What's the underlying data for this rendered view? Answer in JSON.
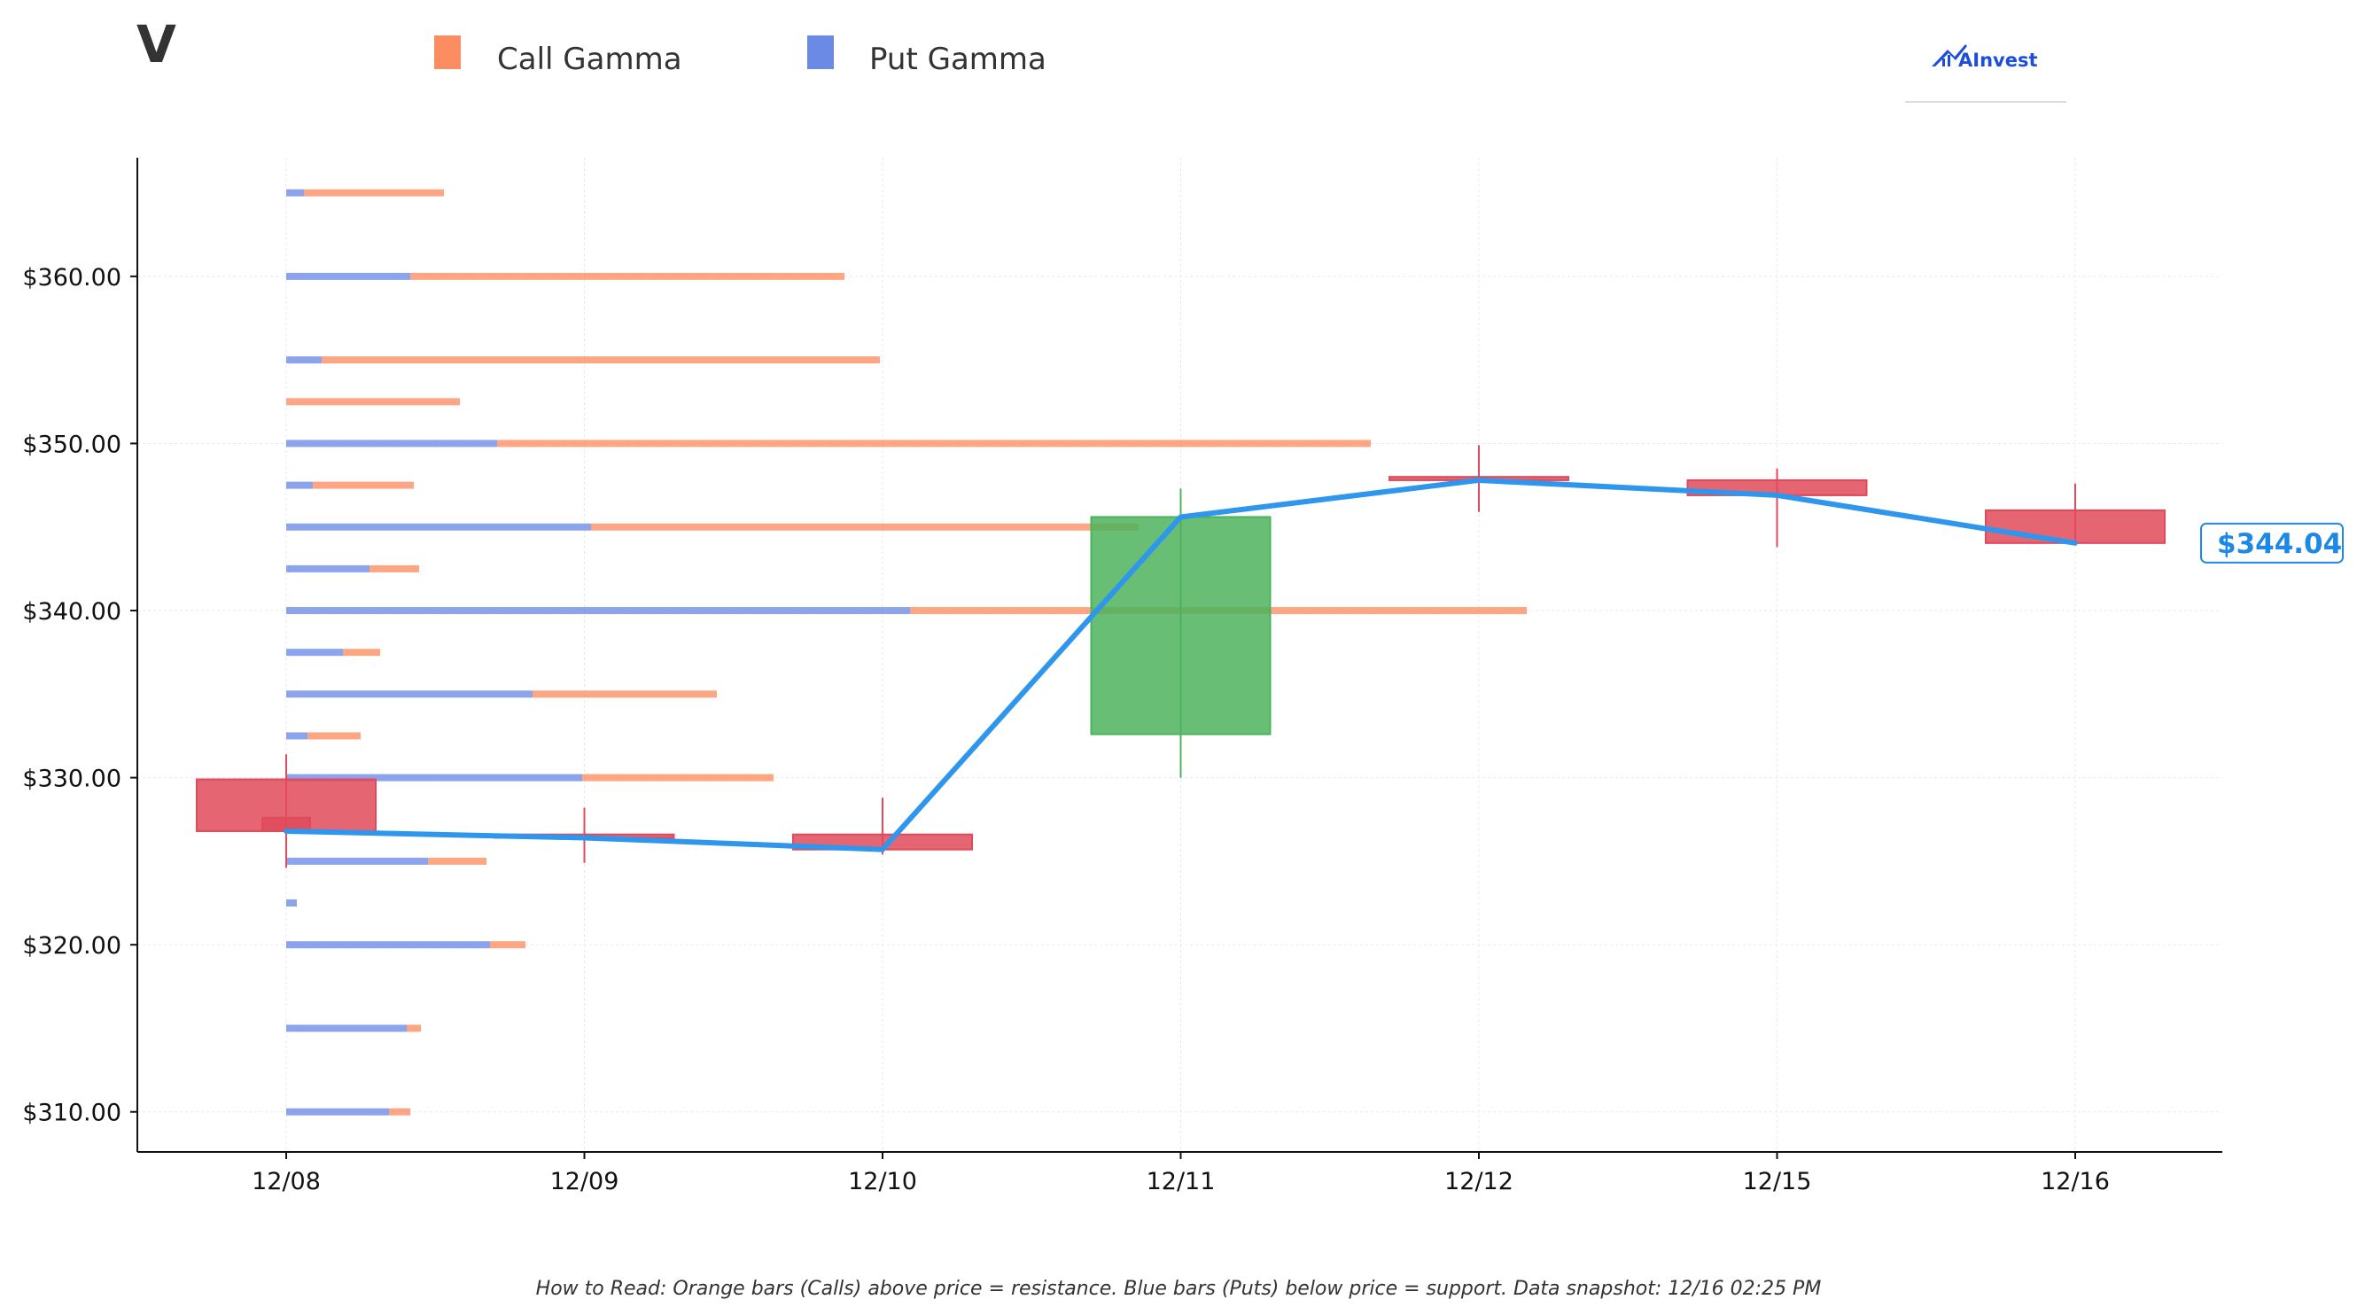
{
  "header": {
    "ticker": "V",
    "brand": "AInvest"
  },
  "legend": {
    "items": [
      {
        "label": "Call Gamma",
        "color": "#fc8d62"
      },
      {
        "label": "Put Gamma",
        "color": "#6b8ae6"
      }
    ]
  },
  "footnote": "How to Read: Orange bars (Calls) above price = resistance. Blue bars (Puts) below price = support. Data snapshot: 12/16 02:25 PM",
  "colors": {
    "call": "#fc8d62",
    "put": "#6b8ae6",
    "up_candle": "#4cb35c",
    "down_candle": "#e04a5a",
    "price_line": "#2f96ee",
    "brand": "#1d4ed8"
  },
  "chart_data": {
    "type": "candlestick",
    "x_categories": [
      "12/08",
      "12/09",
      "12/10",
      "12/11",
      "12/12",
      "12/15",
      "12/16"
    ],
    "y_tick_labels": [
      "$310.00",
      "$320.00",
      "$330.00",
      "$340.00",
      "$350.00",
      "$360.00"
    ],
    "y_ticks": [
      310,
      320,
      330,
      340,
      350,
      360
    ],
    "ylim": [
      307.6,
      367.1
    ],
    "grid": true,
    "candles": [
      {
        "date": "12/08",
        "open": 329.9,
        "high": 331.4,
        "low": 324.6,
        "close": 326.8
      },
      {
        "date": "12/09",
        "open": 326.6,
        "high": 328.2,
        "low": 324.9,
        "close": 326.4
      },
      {
        "date": "12/10",
        "open": 326.6,
        "high": 328.8,
        "low": 325.4,
        "close": 325.7
      },
      {
        "date": "12/11",
        "open": 332.6,
        "high": 347.3,
        "low": 330.0,
        "close": 345.6
      },
      {
        "date": "12/12",
        "open": 348.0,
        "high": 349.9,
        "low": 345.9,
        "close": 347.8
      },
      {
        "date": "12/15",
        "open": 347.8,
        "high": 348.5,
        "low": 343.8,
        "close": 346.9
      },
      {
        "date": "12/16",
        "open": 346.0,
        "high": 347.6,
        "low": 344.0,
        "close": 344.04
      }
    ],
    "extra_candle": {
      "date": "12/08",
      "open": 327.6,
      "high": 327.6,
      "low": 326.8,
      "close": 326.8
    },
    "price_line": {
      "dates": [
        "12/08",
        "12/09",
        "12/10",
        "12/11",
        "12/12",
        "12/15",
        "12/16"
      ],
      "values": [
        326.8,
        326.4,
        325.7,
        345.6,
        347.8,
        346.9,
        344.04
      ]
    },
    "last_price_label": "$344.04",
    "gamma_base_date": "12/08",
    "gamma_levels": [
      {
        "strike": 310,
        "put": 0.29,
        "call": 0.06
      },
      {
        "strike": 315,
        "put": 0.34,
        "call": 0.04
      },
      {
        "strike": 320,
        "put": 0.575,
        "call": 0.1
      },
      {
        "strike": 322.5,
        "put": 0.03,
        "call": 0.0
      },
      {
        "strike": 325,
        "put": 0.4,
        "call": 0.165
      },
      {
        "strike": 330,
        "put": 0.835,
        "call": 0.54
      },
      {
        "strike": 332.5,
        "put": 0.06,
        "call": 0.15
      },
      {
        "strike": 335,
        "put": 0.695,
        "call": 0.52
      },
      {
        "strike": 337.5,
        "put": 0.16,
        "call": 0.105
      },
      {
        "strike": 340,
        "put": 1.76,
        "call": 1.74
      },
      {
        "strike": 342.5,
        "put": 0.235,
        "call": 0.14
      },
      {
        "strike": 345,
        "put": 0.86,
        "call": 1.545
      },
      {
        "strike": 347.5,
        "put": 0.075,
        "call": 0.285
      },
      {
        "strike": 350,
        "put": 0.595,
        "call": 2.465
      },
      {
        "strike": 352.5,
        "put": 0.0,
        "call": 0.49
      },
      {
        "strike": 355,
        "put": 0.1,
        "call": 1.575
      },
      {
        "strike": 360,
        "put": 0.35,
        "call": 1.225
      },
      {
        "strike": 365,
        "put": 0.05,
        "call": 0.395
      }
    ]
  }
}
